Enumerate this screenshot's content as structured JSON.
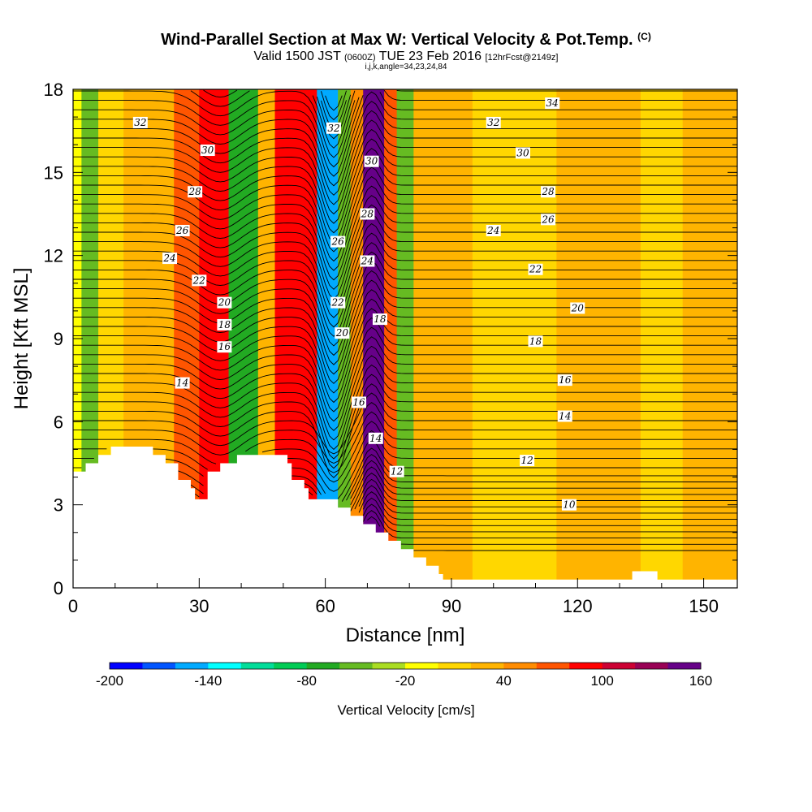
{
  "header": {
    "title": "Wind-Parallel Section at Max W: Vertical Velocity & Pot.Temp.",
    "title_suffix": "(C)",
    "valid_prefix": "Valid 1500 JST",
    "valid_utc": "(0600Z)",
    "valid_date": "TUE 23 Feb 2016",
    "forecast": "[12hrFcst@2149z]",
    "indices": "i,j,k,angle=34,23,24,84"
  },
  "chart_data": {
    "type": "heatmap",
    "xlabel": "Distance [nm]",
    "ylabel": "Height [Kft MSL]",
    "xlim": [
      0,
      158
    ],
    "ylim": [
      0,
      18
    ],
    "xticks": [
      0,
      30,
      60,
      90,
      120,
      150
    ],
    "yticks": [
      0,
      3,
      6,
      9,
      12,
      15,
      18
    ],
    "colorbar": {
      "label": "Vertical Velocity [cm/s]",
      "ticks": [
        -200,
        -140,
        -80,
        -20,
        40,
        100,
        160
      ],
      "levels": [
        -200,
        -180,
        -160,
        -140,
        -120,
        -100,
        -80,
        -60,
        -40,
        -20,
        0,
        20,
        40,
        60,
        80,
        100,
        120,
        140,
        160
      ],
      "colors": [
        "#0000ff",
        "#0055ff",
        "#00aaff",
        "#00ffff",
        "#00dd99",
        "#00cc55",
        "#22aa22",
        "#66bb22",
        "#aadd22",
        "#ffff00",
        "#ffd700",
        "#ffb400",
        "#ff8c00",
        "#ff5500",
        "#ff0000",
        "#cc0033",
        "#990055",
        "#660088"
      ]
    },
    "vertical_velocity_bands": [
      {
        "x": [
          0,
          2
        ],
        "w": -20
      },
      {
        "x": [
          2,
          6
        ],
        "w": -60
      },
      {
        "x": [
          6,
          12
        ],
        "w": 10
      },
      {
        "x": [
          12,
          24
        ],
        "w": 20
      },
      {
        "x": [
          24,
          30
        ],
        "w": 60
      },
      {
        "x": [
          30,
          37
        ],
        "w": 90
      },
      {
        "x": [
          37,
          44
        ],
        "w": -70
      },
      {
        "x": [
          44,
          48
        ],
        "w": 30
      },
      {
        "x": [
          48,
          58
        ],
        "w": 90
      },
      {
        "x": [
          58,
          63
        ],
        "w": -150
      },
      {
        "x": [
          63,
          66
        ],
        "w": -50
      },
      {
        "x": [
          66,
          69
        ],
        "w": 50
      },
      {
        "x": [
          69,
          74
        ],
        "w": 150
      },
      {
        "x": [
          74,
          77
        ],
        "w": 60
      },
      {
        "x": [
          77,
          81
        ],
        "w": -60
      },
      {
        "x": [
          81,
          95
        ],
        "w": 20
      },
      {
        "x": [
          95,
          115
        ],
        "w": 10
      },
      {
        "x": [
          115,
          135
        ],
        "w": 20
      },
      {
        "x": [
          135,
          145
        ],
        "w": 10
      },
      {
        "x": [
          145,
          158
        ],
        "w": 30
      }
    ],
    "terrain_top": [
      {
        "x": 0,
        "h": 4.2
      },
      {
        "x": 3,
        "h": 4.5
      },
      {
        "x": 6,
        "h": 4.8
      },
      {
        "x": 9,
        "h": 5.1
      },
      {
        "x": 19,
        "h": 4.8
      },
      {
        "x": 22,
        "h": 4.5
      },
      {
        "x": 25,
        "h": 3.9
      },
      {
        "x": 28,
        "h": 3.6
      },
      {
        "x": 29,
        "h": 3.2
      },
      {
        "x": 32,
        "h": 4.2
      },
      {
        "x": 35,
        "h": 4.5
      },
      {
        "x": 39,
        "h": 4.8
      },
      {
        "x": 48,
        "h": 4.8
      },
      {
        "x": 51,
        "h": 4.5
      },
      {
        "x": 52,
        "h": 3.9
      },
      {
        "x": 55,
        "h": 3.6
      },
      {
        "x": 56,
        "h": 3.2
      },
      {
        "x": 60,
        "h": 3.2
      },
      {
        "x": 63,
        "h": 2.9
      },
      {
        "x": 66,
        "h": 2.6
      },
      {
        "x": 69,
        "h": 2.3
      },
      {
        "x": 72,
        "h": 2.0
      },
      {
        "x": 75,
        "h": 1.7
      },
      {
        "x": 78,
        "h": 1.4
      },
      {
        "x": 81,
        "h": 1.1
      },
      {
        "x": 84,
        "h": 0.8
      },
      {
        "x": 87,
        "h": 0.5
      },
      {
        "x": 88,
        "h": 0.3
      },
      {
        "x": 133,
        "h": 0.6
      },
      {
        "x": 139,
        "h": 0.3
      },
      {
        "x": 158,
        "h": 0.3
      }
    ],
    "isentrope_labels": [
      {
        "text": "32",
        "x": 16,
        "y": 16.8
      },
      {
        "text": "30",
        "x": 32,
        "y": 15.8
      },
      {
        "text": "28",
        "x": 29,
        "y": 14.3
      },
      {
        "text": "26",
        "x": 26,
        "y": 12.9
      },
      {
        "text": "24",
        "x": 23,
        "y": 11.9
      },
      {
        "text": "22",
        "x": 30,
        "y": 11.1
      },
      {
        "text": "20",
        "x": 36,
        "y": 10.3
      },
      {
        "text": "18",
        "x": 36,
        "y": 9.5
      },
      {
        "text": "16",
        "x": 36,
        "y": 8.7
      },
      {
        "text": "14",
        "x": 26,
        "y": 7.4
      },
      {
        "text": "32",
        "x": 62,
        "y": 16.6
      },
      {
        "text": "30",
        "x": 71,
        "y": 15.4
      },
      {
        "text": "28",
        "x": 70,
        "y": 13.5
      },
      {
        "text": "26",
        "x": 63,
        "y": 12.5
      },
      {
        "text": "24",
        "x": 70,
        "y": 11.8
      },
      {
        "text": "22",
        "x": 63,
        "y": 10.3
      },
      {
        "text": "20",
        "x": 64,
        "y": 9.2
      },
      {
        "text": "18",
        "x": 73,
        "y": 9.7
      },
      {
        "text": "16",
        "x": 68,
        "y": 6.7
      },
      {
        "text": "14",
        "x": 72,
        "y": 5.4
      },
      {
        "text": "12",
        "x": 77,
        "y": 4.2
      },
      {
        "text": "34",
        "x": 114,
        "y": 17.5
      },
      {
        "text": "32",
        "x": 100,
        "y": 16.8
      },
      {
        "text": "30",
        "x": 107,
        "y": 15.7
      },
      {
        "text": "28",
        "x": 113,
        "y": 14.3
      },
      {
        "text": "26",
        "x": 113,
        "y": 13.3
      },
      {
        "text": "24",
        "x": 100,
        "y": 12.9
      },
      {
        "text": "22",
        "x": 110,
        "y": 11.5
      },
      {
        "text": "20",
        "x": 120,
        "y": 10.1
      },
      {
        "text": "18",
        "x": 110,
        "y": 8.9
      },
      {
        "text": "16",
        "x": 117,
        "y": 7.5
      },
      {
        "text": "14",
        "x": 117,
        "y": 6.2
      },
      {
        "text": "12",
        "x": 108,
        "y": 4.6
      },
      {
        "text": "10",
        "x": 118,
        "y": 3.0
      }
    ]
  }
}
